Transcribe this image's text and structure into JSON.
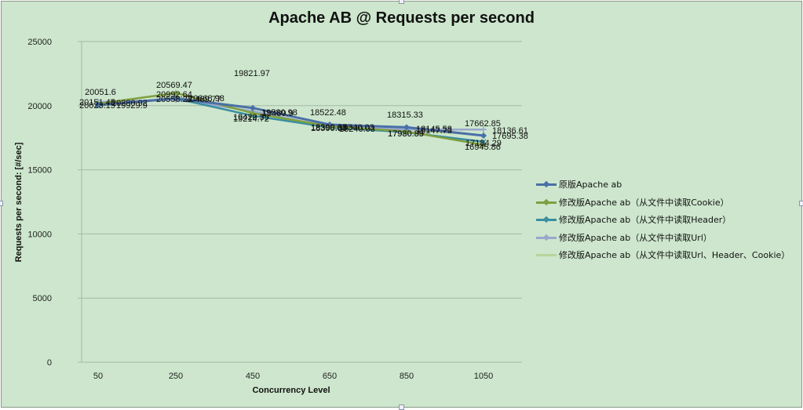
{
  "chart_data": {
    "type": "line",
    "title": "Apache AB @ Requests per second",
    "xlabel": "Concurrency Level",
    "ylabel": "Requests per second: [#/sec]",
    "categories": [
      "50",
      "250",
      "450",
      "650",
      "850",
      "1050"
    ],
    "yticks": [
      "0",
      "5000",
      "10000",
      "15000",
      "20000",
      "25000"
    ],
    "ylim": [
      0,
      25000
    ],
    "grid": true,
    "legend_position": "right",
    "series": [
      {
        "name": "原版Apache ab",
        "color": "#4a6fa8",
        "marker": "diamond",
        "values": [
          20051.6,
          20569.47,
          19821.97,
          18522.48,
          18315.33,
          17662.85
        ],
        "labels": [
          "20051.6",
          "20569.47",
          "19821.97",
          "18522.48",
          "18315.33",
          "17662.85"
        ]
      },
      {
        "name": "修改版Apache ab（从文件中读取Cookie）",
        "color": "#7f9f3f",
        "marker": "triangle",
        "values": [
          20151.45,
          20992.64,
          19420.39,
          18399.68,
          17980.89,
          16945.86
        ],
        "labels": [
          "20151.45",
          "20992.64",
          "19420.39",
          "18399.68",
          "17980.89",
          "16945.86"
        ]
      },
      {
        "name": "修改版Apache ab（从文件中读取Header）",
        "color": "#3a8ea0",
        "marker": "x",
        "values": [
          20023.15,
          20558.23,
          19214.72,
          18300.83,
          17930.35,
          17184.29
        ],
        "labels": [
          "20023.15",
          "20558.23",
          "19214.72",
          "18300.83",
          "17930.35",
          "17184.29"
        ]
      },
      {
        "name": "修改版Apache ab（从文件中读取Url）",
        "color": "#98a8cc",
        "marker": "plus",
        "values": [
          20280.92,
          20469.77,
          19580.98,
          18340.03,
          18147.73,
          18136.61
        ],
        "labels": [
          "20280.92",
          "20469.77",
          "19580.98",
          "18340.03",
          "18147.73",
          "18136.61"
        ]
      },
      {
        "name": "修改版Apache ab（从文件中读取Url、Header、Cookie）",
        "color": "#b8d49a",
        "marker": "none",
        "values": [
          19929.9,
          20668.98,
          19489.9,
          18240.03,
          18145.58,
          17695.38
        ],
        "labels": [
          "19929.9",
          "20668.98",
          "19489.9",
          "18240.03",
          "18145.58",
          "17695.38"
        ]
      }
    ]
  },
  "legend": {
    "items": [
      "原版Apache ab",
      "修改版Apache ab（从文件中读取Cookie）",
      "修改版Apache ab（从文件中读取Header）",
      "修改版Apache ab（从文件中读取Url）",
      "修改版Apache ab（从文件中读取Url、Header、Cookie）"
    ]
  }
}
